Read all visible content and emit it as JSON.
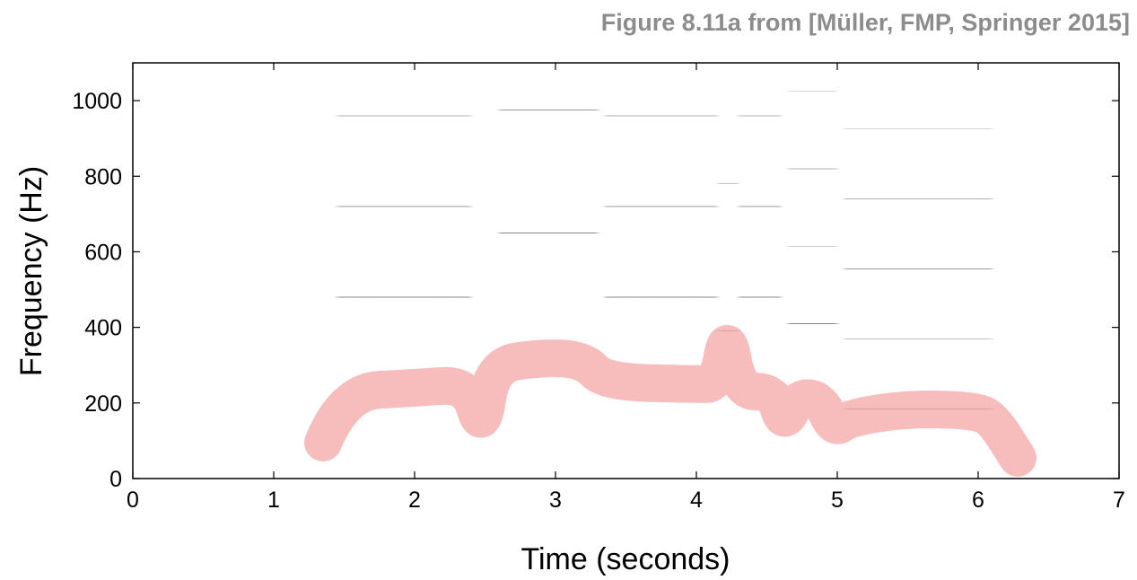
{
  "caption": "Figure 8.11a from [Müller, FMP, Springer 2015]",
  "chart_data": {
    "type": "heatmap",
    "subtype": "spectrogram-with-melody-highlight",
    "xlabel": "Time (seconds)",
    "ylabel": "Frequency (Hz)",
    "xlim": [
      0,
      7
    ],
    "ylim": [
      0,
      1100
    ],
    "xticks": [
      0,
      1,
      2,
      3,
      4,
      5,
      6,
      7
    ],
    "yticks": [
      0,
      200,
      400,
      600,
      800,
      1000
    ],
    "colormap": "gray-reversed",
    "highlight_color": "#f4a3a3",
    "notes": [
      {
        "t0": 1.45,
        "t1": 2.4,
        "f0": 240
      },
      {
        "t0": 2.6,
        "t1": 3.3,
        "f0": 325
      },
      {
        "t0": 3.35,
        "t1": 4.15,
        "f0": 240
      },
      {
        "t0": 4.15,
        "t1": 4.3,
        "f0": 390
      },
      {
        "t0": 4.3,
        "t1": 4.6,
        "f0": 240
      },
      {
        "t0": 4.65,
        "t1": 5.0,
        "f0": 205
      },
      {
        "t0": 5.05,
        "t1": 6.1,
        "f0": 185
      }
    ],
    "melody_highlight": [
      {
        "x": 1.35,
        "y": 95
      },
      {
        "x": 1.5,
        "y": 230
      },
      {
        "x": 2.0,
        "y": 240
      },
      {
        "x": 2.38,
        "y": 250
      },
      {
        "x": 2.48,
        "y": 120
      },
      {
        "x": 2.55,
        "y": 300
      },
      {
        "x": 2.9,
        "y": 320
      },
      {
        "x": 3.2,
        "y": 315
      },
      {
        "x": 3.35,
        "y": 255
      },
      {
        "x": 4.0,
        "y": 250
      },
      {
        "x": 4.15,
        "y": 250
      },
      {
        "x": 4.22,
        "y": 395
      },
      {
        "x": 4.3,
        "y": 230
      },
      {
        "x": 4.55,
        "y": 230
      },
      {
        "x": 4.62,
        "y": 140
      },
      {
        "x": 4.72,
        "y": 215
      },
      {
        "x": 4.88,
        "y": 210
      },
      {
        "x": 4.98,
        "y": 130
      },
      {
        "x": 5.08,
        "y": 160
      },
      {
        "x": 5.5,
        "y": 185
      },
      {
        "x": 6.0,
        "y": 180
      },
      {
        "x": 6.12,
        "y": 150
      },
      {
        "x": 6.28,
        "y": 55
      }
    ]
  }
}
